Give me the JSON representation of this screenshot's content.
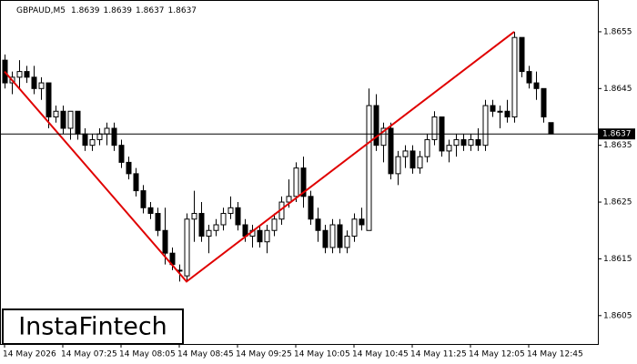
{
  "chart_data": {
    "type": "candlestick",
    "symbol": "GBPAUD,M5",
    "categories": [
      "14 May 2026",
      null,
      null,
      null,
      null,
      null,
      null,
      null,
      "14 May 07:25",
      null,
      null,
      null,
      null,
      null,
      null,
      null,
      "14 May 08:05",
      null,
      null,
      null,
      null,
      null,
      null,
      null,
      "14 May 08:45",
      null,
      null,
      null,
      null,
      null,
      null,
      null,
      "14 May 09:25",
      null,
      null,
      null,
      null,
      null,
      null,
      null,
      "14 May 10:05",
      null,
      null,
      null,
      null,
      null,
      null,
      null,
      "14 May 10:45",
      null,
      null,
      null,
      null,
      null,
      null,
      null,
      "14 May 11:25",
      null,
      null,
      null,
      null,
      null,
      null,
      null,
      "14 May 12:05",
      null,
      null,
      null,
      null,
      null,
      null,
      null,
      "14 May 12:45",
      null,
      null,
      null
    ],
    "open": [
      1.865,
      1.8646,
      1.8647,
      1.8648,
      1.8647,
      1.8645,
      1.8646,
      1.864,
      1.8641,
      1.8638,
      1.8641,
      1.8637,
      1.8635,
      1.8636,
      1.8637,
      1.8638,
      1.8635,
      1.8632,
      1.863,
      1.8627,
      1.8624,
      1.8623,
      1.862,
      1.8616,
      1.8613,
      1.8612,
      1.8622,
      1.8623,
      1.8619,
      1.862,
      1.8621,
      1.8623,
      1.8624,
      1.8621,
      1.8619,
      1.862,
      1.8618,
      1.862,
      1.8622,
      1.8625,
      1.8626,
      1.8631,
      1.8626,
      1.8622,
      1.862,
      1.8617,
      1.8621,
      1.8617,
      1.8619,
      1.8622,
      1.862,
      1.8642,
      1.8635,
      1.8638,
      1.863,
      1.8633,
      1.8634,
      1.8631,
      1.8633,
      1.8636,
      1.864,
      1.8634,
      1.8635,
      1.8636,
      1.8635,
      1.8636,
      1.8635,
      1.8642,
      1.8641,
      1.8641,
      1.864,
      1.8654,
      1.8648,
      1.8646,
      1.8645,
      1.8639
    ],
    "high": [
      1.8651,
      1.8648,
      1.865,
      1.8649,
      1.8649,
      1.8647,
      1.8646,
      1.8642,
      1.8642,
      1.8641,
      1.8641,
      1.8638,
      1.8637,
      1.8638,
      1.8639,
      1.8639,
      1.8636,
      1.8633,
      1.8631,
      1.8628,
      1.8625,
      1.8624,
      1.8624,
      1.8617,
      1.8614,
      1.8623,
      1.8627,
      1.8625,
      1.8621,
      1.8622,
      1.8624,
      1.8626,
      1.8625,
      1.8622,
      1.8621,
      1.8621,
      1.8621,
      1.8623,
      1.8626,
      1.8629,
      1.8632,
      1.8633,
      1.8627,
      1.8624,
      1.8621,
      1.8622,
      1.8622,
      1.862,
      1.8623,
      1.8624,
      1.8645,
      1.8644,
      1.8639,
      1.8639,
      1.8634,
      1.8635,
      1.8635,
      1.8634,
      1.8637,
      1.8641,
      1.864,
      1.8636,
      1.8637,
      1.8637,
      1.8637,
      1.8638,
      1.8643,
      1.8643,
      1.8642,
      1.8643,
      1.8655,
      1.8654,
      1.8649,
      1.8648,
      1.8645,
      1.8639
    ],
    "low": [
      1.8645,
      1.8644,
      1.8645,
      1.8646,
      1.8644,
      1.8643,
      1.8638,
      1.8639,
      1.8637,
      1.8636,
      1.8636,
      1.8634,
      1.8634,
      1.8635,
      1.8635,
      1.8634,
      1.8631,
      1.8629,
      1.8626,
      1.8623,
      1.8622,
      1.8619,
      1.8614,
      1.8613,
      1.8611,
      1.8611,
      1.8618,
      1.8618,
      1.8616,
      1.8619,
      1.862,
      1.8622,
      1.862,
      1.8618,
      1.8617,
      1.8617,
      1.8616,
      1.8619,
      1.8621,
      1.8624,
      1.8625,
      1.8624,
      1.8621,
      1.8618,
      1.8616,
      1.8616,
      1.8616,
      1.8616,
      1.8618,
      1.862,
      1.862,
      1.8634,
      1.8632,
      1.8629,
      1.8628,
      1.8631,
      1.863,
      1.863,
      1.8632,
      1.8635,
      1.8633,
      1.8632,
      1.8633,
      1.8634,
      1.8634,
      1.8634,
      1.8634,
      1.864,
      1.8638,
      1.8639,
      1.8639,
      1.8647,
      1.8645,
      1.8643,
      1.8639,
      1.8637
    ],
    "close": [
      1.8646,
      1.8647,
      1.8648,
      1.8647,
      1.8645,
      1.8646,
      1.864,
      1.8641,
      1.8638,
      1.8641,
      1.8637,
      1.8635,
      1.8636,
      1.8637,
      1.8638,
      1.8635,
      1.8632,
      1.863,
      1.8627,
      1.8624,
      1.8623,
      1.862,
      1.8616,
      1.8614,
      1.8613,
      1.8622,
      1.8623,
      1.8619,
      1.862,
      1.8621,
      1.8623,
      1.8624,
      1.8621,
      1.8619,
      1.862,
      1.8618,
      1.862,
      1.8622,
      1.8625,
      1.8626,
      1.8631,
      1.8626,
      1.8622,
      1.862,
      1.8617,
      1.8621,
      1.8617,
      1.8619,
      1.8622,
      1.8621,
      1.8642,
      1.8635,
      1.8638,
      1.863,
      1.8633,
      1.8634,
      1.8631,
      1.8633,
      1.8636,
      1.864,
      1.8634,
      1.8635,
      1.8636,
      1.8635,
      1.8636,
      1.8635,
      1.8642,
      1.8641,
      1.8641,
      1.864,
      1.8654,
      1.8648,
      1.8646,
      1.8645,
      1.864,
      1.8637
    ],
    "ylim": [
      1.86,
      1.86606
    ],
    "yticks": [
      1.8605,
      1.8615,
      1.8625,
      1.8635,
      1.8645,
      1.8655
    ],
    "current_price": 1.8637,
    "pattern_line": {
      "color": "#e00000",
      "points": [
        {
          "index": 0,
          "value": 1.8648
        },
        {
          "index": 25,
          "value": 1.8611
        },
        {
          "index": 70,
          "value": 1.8655
        }
      ]
    },
    "logo": "InstaFintech"
  }
}
